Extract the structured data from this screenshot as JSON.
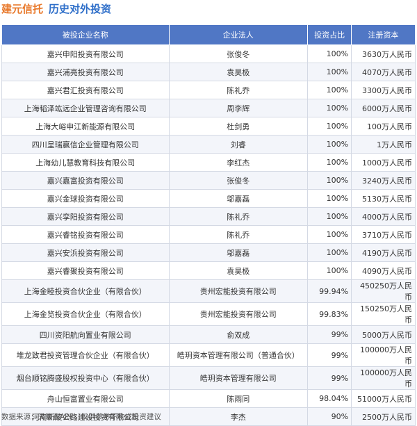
{
  "header": {
    "brand": "建元信托",
    "title": "历史对外投资"
  },
  "table": {
    "columns": [
      "被投企业名称",
      "企业法人",
      "投资占比",
      "注册资本"
    ],
    "rows": [
      [
        "嘉兴申阳投资有限公司",
        "张俊冬",
        "100%",
        "3630万人民币"
      ],
      [
        "嘉兴浦亮投资有限公司",
        "袁昊极",
        "100%",
        "4070万人民币"
      ],
      [
        "嘉兴君汇投资有限公司",
        "陈礼乔",
        "100%",
        "3300万人民币"
      ],
      [
        "上海韬泽竑远企业管理咨询有限公司",
        "周李辉",
        "100%",
        "6000万人民币"
      ],
      [
        "上海大峪申江新能源有限公司",
        "杜剑勇",
        "100%",
        "100万人民币"
      ],
      [
        "四川呈瑞赢信企业管理有限公司",
        "刘睿",
        "100%",
        "1万人民币"
      ],
      [
        "上海幼儿慧教育科技有限公司",
        "李红杰",
        "100%",
        "1000万人民币"
      ],
      [
        "嘉兴嘉富投资有限公司",
        "张俊冬",
        "100%",
        "3240万人民币"
      ],
      [
        "嘉兴金球投资有限公司",
        "邬嘉磊",
        "100%",
        "5130万人民币"
      ],
      [
        "嘉兴孪阳投资有限公司",
        "陈礼乔",
        "100%",
        "4000万人民币"
      ],
      [
        "嘉兴睿铭投资有限公司",
        "陈礼乔",
        "100%",
        "3710万人民币"
      ],
      [
        "嘉兴安浜投资有限公司",
        "邬嘉磊",
        "100%",
        "4190万人民币"
      ],
      [
        "嘉兴睿聚投资有限公司",
        "袁昊极",
        "100%",
        "4090万人民币"
      ],
      [
        "上海金睦投资合伙企业（有限合伙）",
        "贵州宏能投资有限公司",
        "99.94%",
        "450250万人民币"
      ],
      [
        "上海金览投资合伙企业（有限合伙）",
        "贵州宏能投资有限公司",
        "99.83%",
        "150250万人民币"
      ],
      [
        "四川资阳航向置业有限公司",
        "俞双成",
        "99%",
        "5000万人民币"
      ],
      [
        "堆龙致君投资管理合伙企业（有限合伙）",
        "皓玥资本管理有限公司（普通合伙）",
        "99%",
        "100000万人民币"
      ],
      [
        "烟台顺铭腾盛股权投资中心（有限合伙）",
        "皓玥资本管理有限公司",
        "99%",
        "100000万人民币"
      ],
      [
        "舟山恒富置业有限公司",
        "陈雨同",
        "98.04%",
        "51000万人民币"
      ],
      [
        "河南新陵公路建设投资有限公司",
        "李杰",
        "90%",
        "2500万人民币"
      ]
    ]
  },
  "footer": {
    "source": "数据来源：天眼查APP，仅供参考不构成投资建议"
  }
}
